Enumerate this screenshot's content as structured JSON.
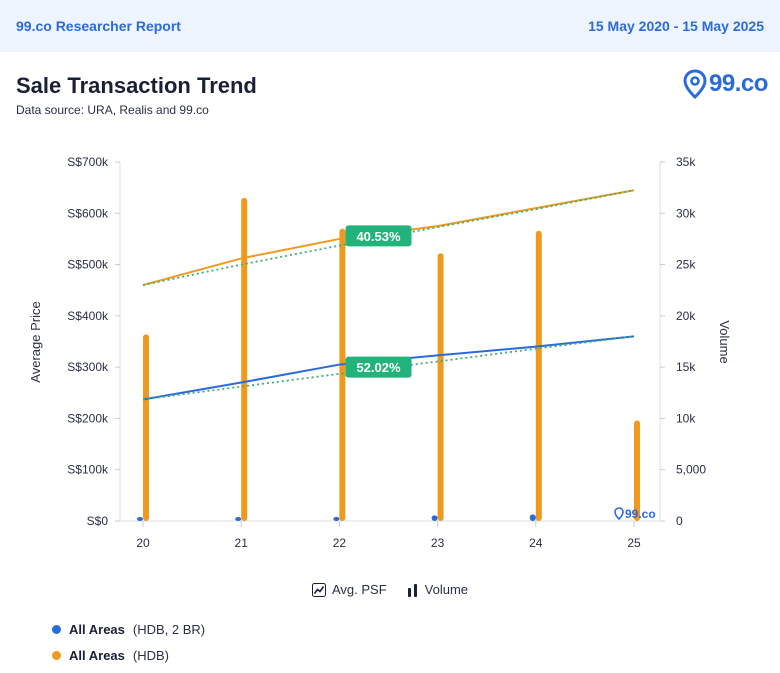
{
  "header": {
    "report_title": "99.co Researcher Report",
    "date_range": "15 May 2020 - 15 May 2025"
  },
  "page": {
    "title": "Sale Transaction Trend",
    "subtitle": "Data source: URA, Realis and 99.co",
    "logo_text": "99.co"
  },
  "chart_data": {
    "type": "bar",
    "categories": [
      "20",
      "21",
      "22",
      "23",
      "24",
      "25"
    ],
    "y_left": {
      "label": "Average Price",
      "range": [
        0,
        700000
      ],
      "ticks": [
        "S$0",
        "S$100k",
        "S$200k",
        "S$300k",
        "S$400k",
        "S$500k",
        "S$600k",
        "S$700k"
      ]
    },
    "y_right": {
      "label": "Volume",
      "range": [
        0,
        35000
      ],
      "ticks": [
        "0",
        "5,000",
        "10k",
        "15k",
        "20k",
        "25k",
        "30k",
        "35k"
      ]
    },
    "series": [
      {
        "name": "All Areas (HDB)",
        "kind": "volume-bars",
        "axis": "right",
        "color": "#ef9a1f",
        "values": [
          18200,
          31500,
          28500,
          26100,
          28300,
          9800
        ]
      },
      {
        "name": "All Areas (HDB, 2 BR)",
        "kind": "volume-bars",
        "axis": "right",
        "color": "#2b6bd9",
        "values": [
          150,
          300,
          400,
          550,
          650,
          0
        ]
      },
      {
        "name": "All Areas (HDB)",
        "kind": "price-line",
        "axis": "left",
        "color": "#ef9a1f",
        "values": [
          460000,
          512000,
          550000,
          575000,
          610000,
          645000
        ],
        "trend": [
          460000,
          500000,
          537000,
          573000,
          608000,
          645000
        ],
        "change_label": "40.53%"
      },
      {
        "name": "All Areas (HDB, 2 BR)",
        "kind": "price-line",
        "axis": "left",
        "color": "#2b6bd9",
        "values": [
          237000,
          270000,
          305000,
          323000,
          340000,
          360000
        ],
        "trend": [
          237000,
          262000,
          287000,
          311000,
          336000,
          360000
        ],
        "change_label": "52.02%"
      }
    ],
    "grid": false
  },
  "legend": {
    "avg_psf": "Avg. PSF",
    "volume": "Volume"
  },
  "series_legend": [
    {
      "name": "All Areas",
      "sub": "(HDB, 2 BR)",
      "color": "#2b6bd9"
    },
    {
      "name": "All Areas",
      "sub": "(HDB)",
      "color": "#ef9a1f"
    }
  ]
}
